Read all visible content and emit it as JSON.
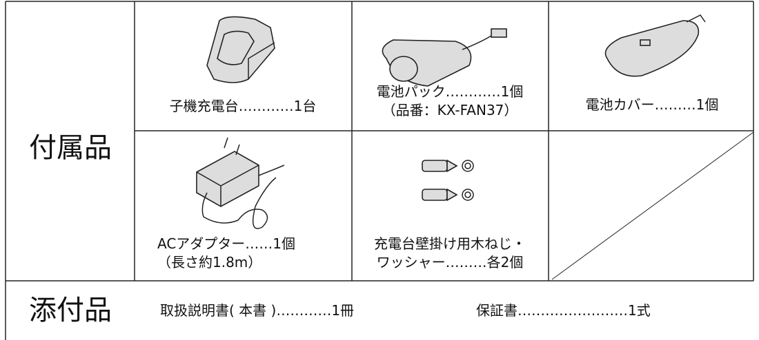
{
  "accessories": {
    "label": "付属品",
    "items": [
      {
        "lines": [
          "子機充電台…………1台"
        ]
      },
      {
        "lines": [
          "電池パック…………1個",
          "（品番：KX-FAN37）"
        ]
      },
      {
        "lines": [
          "電池カバー………1個"
        ]
      },
      {
        "lines": [
          "ACアダプター……1個",
          "（長さ約1.8m）"
        ]
      },
      {
        "lines": [
          "充電台壁掛け用木ねじ・",
          "ワッシャー………各2個"
        ]
      }
    ]
  },
  "included": {
    "label": "添付品",
    "items": [
      "取扱説明書( 本書 )…………1冊",
      "保証書……………………1式"
    ]
  }
}
